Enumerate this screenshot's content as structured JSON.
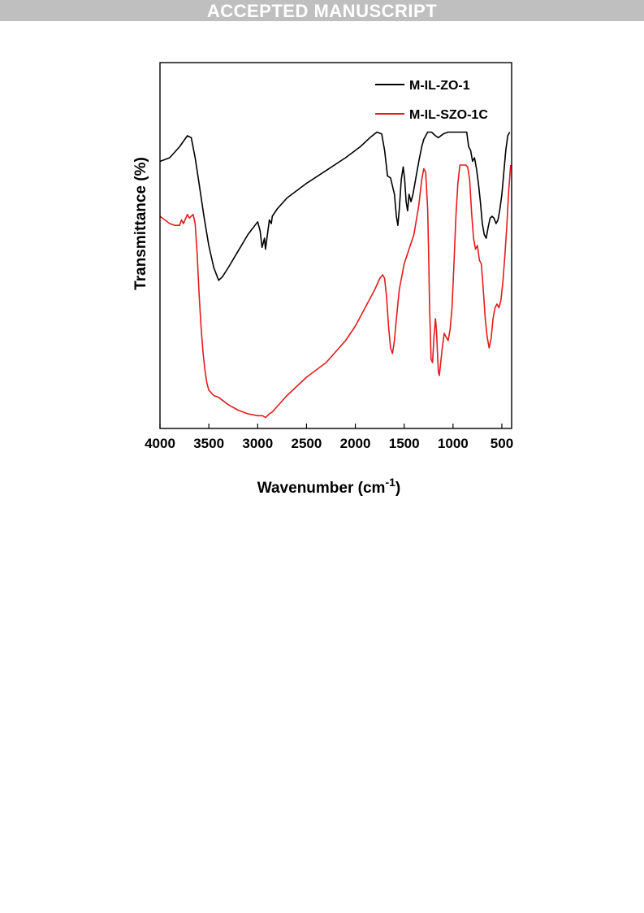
{
  "banner": {
    "text": "ACCEPTED MANUSCRIPT"
  },
  "chart_data": {
    "type": "line",
    "xlabel": "Wavenumber (cm",
    "xlabel_sup": "-1",
    "xlabel_close": ")",
    "ylabel": "Transmittance (%)",
    "xlim": [
      4000,
      400
    ],
    "ylim": [
      0,
      100
    ],
    "x_reversed": true,
    "y_ticks_shown": false,
    "x_ticks": [
      4000,
      3500,
      3000,
      2500,
      2000,
      1500,
      1000,
      500
    ],
    "grid": false,
    "legend_position": "top-right",
    "series": [
      {
        "name": "M-IL-ZO-1",
        "color": "#000000",
        "points": [
          [
            4000,
            73
          ],
          [
            3900,
            74
          ],
          [
            3800,
            77
          ],
          [
            3720,
            80
          ],
          [
            3680,
            79.5
          ],
          [
            3640,
            74
          ],
          [
            3600,
            67
          ],
          [
            3550,
            58
          ],
          [
            3500,
            50
          ],
          [
            3450,
            44
          ],
          [
            3400,
            40.5
          ],
          [
            3360,
            41.5
          ],
          [
            3300,
            44
          ],
          [
            3200,
            48.5
          ],
          [
            3100,
            53
          ],
          [
            3000,
            56.5
          ],
          [
            2975,
            54
          ],
          [
            2955,
            49.5
          ],
          [
            2930,
            52
          ],
          [
            2920,
            49
          ],
          [
            2900,
            53
          ],
          [
            2880,
            57
          ],
          [
            2860,
            56
          ],
          [
            2850,
            58
          ],
          [
            2800,
            60
          ],
          [
            2700,
            63
          ],
          [
            2500,
            67
          ],
          [
            2300,
            70.5
          ],
          [
            2100,
            74
          ],
          [
            1950,
            77
          ],
          [
            1850,
            79.5
          ],
          [
            1780,
            81
          ],
          [
            1730,
            80.5
          ],
          [
            1700,
            76
          ],
          [
            1670,
            69
          ],
          [
            1640,
            68.5
          ],
          [
            1600,
            64
          ],
          [
            1580,
            58
          ],
          [
            1565,
            55.5
          ],
          [
            1550,
            60
          ],
          [
            1530,
            68
          ],
          [
            1510,
            71.5
          ],
          [
            1495,
            68
          ],
          [
            1480,
            62
          ],
          [
            1465,
            59.5
          ],
          [
            1450,
            64
          ],
          [
            1430,
            62
          ],
          [
            1410,
            64
          ],
          [
            1390,
            67
          ],
          [
            1370,
            70
          ],
          [
            1350,
            73
          ],
          [
            1320,
            77
          ],
          [
            1300,
            79
          ],
          [
            1260,
            81
          ],
          [
            1220,
            81
          ],
          [
            1180,
            80
          ],
          [
            1150,
            79.5
          ],
          [
            1100,
            80.5
          ],
          [
            1050,
            81
          ],
          [
            1000,
            81
          ],
          [
            950,
            81
          ],
          [
            900,
            81
          ],
          [
            860,
            81
          ],
          [
            840,
            77
          ],
          [
            820,
            76
          ],
          [
            800,
            73
          ],
          [
            780,
            74
          ],
          [
            760,
            71
          ],
          [
            740,
            67
          ],
          [
            720,
            62
          ],
          [
            700,
            56
          ],
          [
            680,
            53
          ],
          [
            660,
            52
          ],
          [
            640,
            55
          ],
          [
            620,
            57.5
          ],
          [
            600,
            58
          ],
          [
            580,
            57.5
          ],
          [
            560,
            56
          ],
          [
            540,
            57
          ],
          [
            520,
            60
          ],
          [
            500,
            64
          ],
          [
            480,
            70
          ],
          [
            460,
            76
          ],
          [
            440,
            80
          ],
          [
            420,
            81
          ]
        ]
      },
      {
        "name": "M-IL-SZO-1C",
        "color": "#e41a1c",
        "points": [
          [
            4000,
            58
          ],
          [
            3950,
            57
          ],
          [
            3900,
            56
          ],
          [
            3850,
            55.5
          ],
          [
            3800,
            55.5
          ],
          [
            3780,
            57
          ],
          [
            3760,
            56
          ],
          [
            3720,
            58.5
          ],
          [
            3700,
            57.5
          ],
          [
            3680,
            58
          ],
          [
            3660,
            58.5
          ],
          [
            3640,
            56
          ],
          [
            3620,
            48
          ],
          [
            3600,
            37
          ],
          [
            3580,
            28
          ],
          [
            3560,
            21
          ],
          [
            3540,
            16
          ],
          [
            3520,
            12.5
          ],
          [
            3500,
            10.5
          ],
          [
            3450,
            9
          ],
          [
            3400,
            8.5
          ],
          [
            3300,
            6.5
          ],
          [
            3200,
            5
          ],
          [
            3100,
            4
          ],
          [
            3000,
            3.5
          ],
          [
            2950,
            3.5
          ],
          [
            2920,
            3
          ],
          [
            2900,
            3.5
          ],
          [
            2880,
            4
          ],
          [
            2850,
            4.5
          ],
          [
            2800,
            6
          ],
          [
            2700,
            9
          ],
          [
            2500,
            14
          ],
          [
            2300,
            18
          ],
          [
            2100,
            24
          ],
          [
            2000,
            28
          ],
          [
            1900,
            33
          ],
          [
            1800,
            38
          ],
          [
            1750,
            41
          ],
          [
            1720,
            42
          ],
          [
            1700,
            41
          ],
          [
            1680,
            36
          ],
          [
            1660,
            28
          ],
          [
            1640,
            22
          ],
          [
            1620,
            20.5
          ],
          [
            1600,
            24
          ],
          [
            1580,
            30
          ],
          [
            1550,
            38
          ],
          [
            1500,
            45
          ],
          [
            1450,
            49
          ],
          [
            1400,
            53
          ],
          [
            1350,
            61
          ],
          [
            1320,
            68
          ],
          [
            1300,
            71
          ],
          [
            1280,
            70
          ],
          [
            1260,
            60
          ],
          [
            1250,
            48
          ],
          [
            1240,
            33
          ],
          [
            1225,
            19
          ],
          [
            1210,
            18
          ],
          [
            1195,
            25
          ],
          [
            1180,
            30
          ],
          [
            1170,
            27
          ],
          [
            1160,
            21
          ],
          [
            1150,
            15.5
          ],
          [
            1140,
            14.5
          ],
          [
            1130,
            17
          ],
          [
            1110,
            22
          ],
          [
            1090,
            26
          ],
          [
            1070,
            25
          ],
          [
            1050,
            24
          ],
          [
            1030,
            27
          ],
          [
            1010,
            33
          ],
          [
            990,
            45
          ],
          [
            970,
            58
          ],
          [
            950,
            67
          ],
          [
            930,
            72
          ],
          [
            910,
            72
          ],
          [
            890,
            72
          ],
          [
            870,
            72
          ],
          [
            850,
            71.5
          ],
          [
            830,
            68
          ],
          [
            810,
            59
          ],
          [
            790,
            52
          ],
          [
            770,
            49
          ],
          [
            750,
            50
          ],
          [
            730,
            46
          ],
          [
            710,
            45
          ],
          [
            690,
            38
          ],
          [
            670,
            30
          ],
          [
            650,
            25
          ],
          [
            630,
            22
          ],
          [
            610,
            24.5
          ],
          [
            590,
            30
          ],
          [
            570,
            33
          ],
          [
            550,
            34
          ],
          [
            530,
            33
          ],
          [
            510,
            35
          ],
          [
            490,
            40
          ],
          [
            470,
            47
          ],
          [
            450,
            55
          ],
          [
            430,
            65
          ],
          [
            410,
            72
          ]
        ]
      }
    ]
  }
}
